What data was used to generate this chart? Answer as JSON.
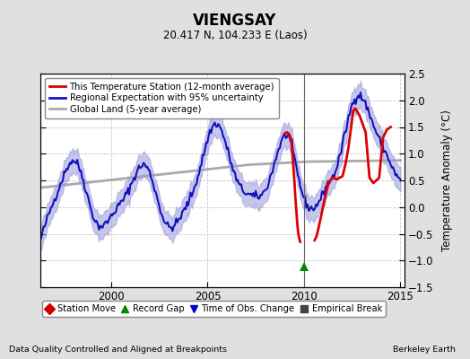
{
  "title": "VIENGSAY",
  "subtitle": "20.417 N, 104.233 E (Laos)",
  "ylabel": "Temperature Anomaly (°C)",
  "xlabel_left": "Data Quality Controlled and Aligned at Breakpoints",
  "xlabel_right": "Berkeley Earth",
  "ylim": [
    -1.5,
    2.5
  ],
  "xlim_start": 1996.3,
  "xlim_end": 2015.2,
  "xticks": [
    2000,
    2005,
    2010,
    2015
  ],
  "yticks": [
    -1.5,
    -1.0,
    -0.5,
    0.0,
    0.5,
    1.0,
    1.5,
    2.0,
    2.5
  ],
  "background_color": "#e0e0e0",
  "plot_bg_color": "#ffffff",
  "grid_color": "#c8c8c8",
  "blue_line_color": "#1111bb",
  "blue_fill_color": "#9999dd",
  "red_line_color": "#dd0000",
  "gray_line_color": "#aaaaaa",
  "vertical_line_x": 2010.0,
  "record_gap_x": 2010.0,
  "record_gap_y": -1.12,
  "legend_items": [
    {
      "label": "This Temperature Station (12-month average)",
      "color": "#dd0000",
      "lw": 2
    },
    {
      "label": "Regional Expectation with 95% uncertainty",
      "color": "#1111bb",
      "lw": 2
    },
    {
      "label": "Global Land (5-year average)",
      "color": "#aaaaaa",
      "lw": 2
    }
  ],
  "bottom_legend": [
    {
      "label": "Station Move",
      "color": "#cc0000",
      "marker": "D"
    },
    {
      "label": "Record Gap",
      "color": "#008800",
      "marker": "^"
    },
    {
      "label": "Time of Obs. Change",
      "color": "#0000cc",
      "marker": "v"
    },
    {
      "label": "Empirical Break",
      "color": "#444444",
      "marker": "s"
    }
  ]
}
